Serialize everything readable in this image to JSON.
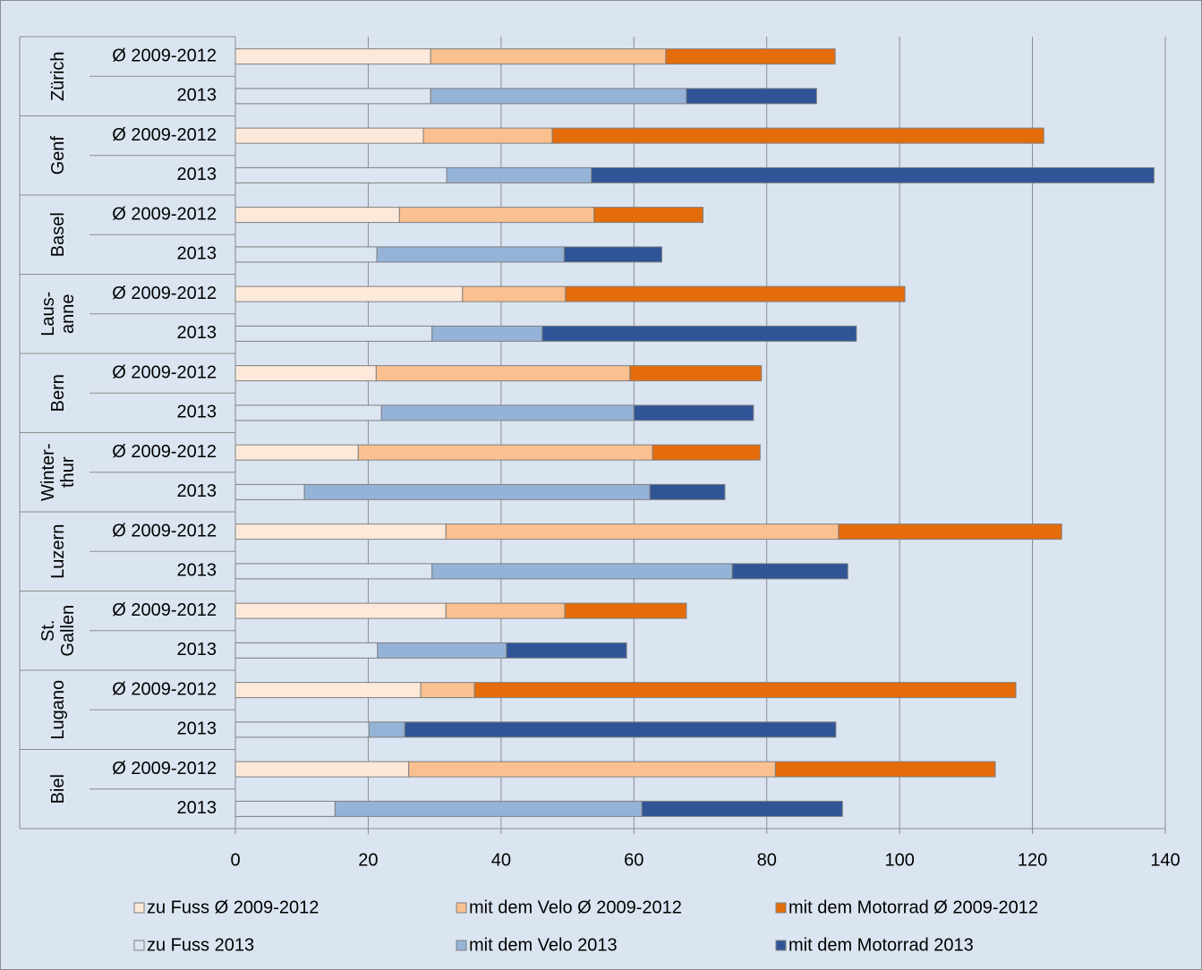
{
  "chart_data": {
    "type": "stacked-bar-horizontal",
    "groups": [
      "Zürich",
      "Genf",
      "Basel",
      "Laus-\nanne",
      "Bern",
      "Winter-\nthur",
      "Luzern",
      "St.\nGallen",
      "Lugano",
      "Biel"
    ],
    "categories": [
      "Ø 2009-2012",
      "2013",
      "Ø 2009-2012",
      "2013",
      "Ø 2009-2012",
      "2013",
      "Ø 2009-2012",
      "2013",
      "Ø 2009-2012",
      "2013",
      "Ø 2009-2012",
      "2013",
      "Ø 2009-2012",
      "2013",
      "Ø 2009-2012",
      "2013",
      "Ø 2009-2012",
      "2013",
      "Ø 2009-2012",
      "2013"
    ],
    "series": [
      {
        "name": "zu Fuss Ø 2009-2012",
        "color": "#fde9d9",
        "values": [
          29.4,
          null,
          28.3,
          null,
          24.7,
          null,
          34.2,
          null,
          21.2,
          null,
          18.5,
          null,
          31.7,
          null,
          31.7,
          null,
          27.9,
          null,
          26.1,
          null
        ]
      },
      {
        "name": "mit dem Velo Ø 2009-2012",
        "color": "#fac090",
        "values": [
          35.4,
          null,
          19.4,
          null,
          29.3,
          null,
          15.5,
          null,
          38.2,
          null,
          44.3,
          null,
          59.1,
          null,
          17.9,
          null,
          8.1,
          null,
          55.2,
          null
        ]
      },
      {
        "name": "mit dem Motorrad Ø 2009-2012",
        "color": "#e46c0a",
        "values": [
          25.5,
          null,
          74.0,
          null,
          16.4,
          null,
          51.1,
          null,
          19.8,
          null,
          16.2,
          null,
          33.6,
          null,
          18.3,
          null,
          81.5,
          null,
          33.1,
          null
        ]
      },
      {
        "name": "zu Fuss 2013",
        "color": "#dce6f2",
        "values": [
          null,
          29.4,
          null,
          31.8,
          null,
          21.3,
          null,
          29.6,
          null,
          22.0,
          null,
          10.4,
          null,
          29.6,
          null,
          21.4,
          null,
          20.1,
          null,
          15.0
        ]
      },
      {
        "name": "mit dem Velo 2013",
        "color": "#95b3d7",
        "values": [
          null,
          38.5,
          null,
          21.8,
          null,
          28.2,
          null,
          16.6,
          null,
          38.0,
          null,
          52.0,
          null,
          45.2,
          null,
          19.4,
          null,
          5.4,
          null,
          46.2
        ]
      },
      {
        "name": "mit dem Motorrad 2013",
        "color": "#2f5597",
        "values": [
          null,
          19.6,
          null,
          84.7,
          null,
          14.7,
          null,
          47.3,
          null,
          18.0,
          null,
          11.3,
          null,
          17.4,
          null,
          18.1,
          null,
          64.9,
          null,
          30.2
        ]
      }
    ],
    "xlim": [
      0,
      140
    ],
    "xticks": [
      0,
      20,
      40,
      60,
      80,
      100,
      120,
      140
    ],
    "grid": true,
    "legend": "bottom"
  }
}
